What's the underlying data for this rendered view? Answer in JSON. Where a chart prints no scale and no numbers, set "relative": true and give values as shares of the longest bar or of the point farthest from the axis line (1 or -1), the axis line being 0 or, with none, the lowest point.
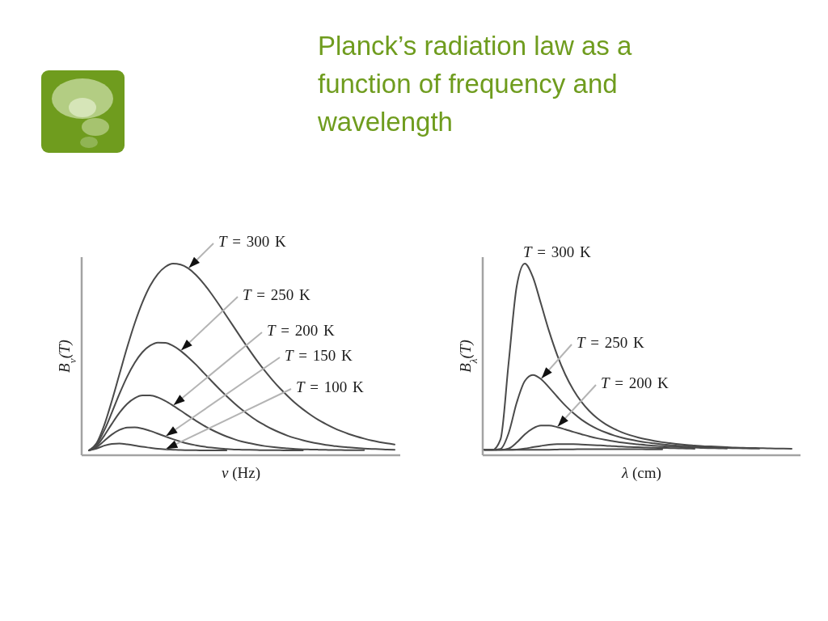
{
  "chart_data": [
    {
      "type": "line",
      "title": "Planck’s radiation law as a function of frequency and wavelength",
      "xlabel": "ν (Hz)",
      "ylabel": "B$_{ν}$(T)",
      "relative": true,
      "categories": [
        null,
        null,
        null,
        null,
        null,
        null,
        null,
        null,
        null,
        null,
        null,
        null,
        null,
        null,
        null,
        null,
        null,
        null,
        null,
        null,
        null,
        null,
        null,
        null,
        null,
        null,
        null,
        null,
        null,
        null,
        null,
        null,
        null,
        null,
        null,
        null,
        null,
        null,
        null,
        null,
        null
      ],
      "series": [
        {
          "name": "T = 300 K",
          "color": "#4a4a4a",
          "values": [
            0.025,
            0.063,
            0.157,
            0.284,
            0.424,
            0.563,
            0.69,
            0.798,
            0.884,
            0.945,
            0.983,
            1,
            0.995,
            0.975,
            0.941,
            0.896,
            0.844,
            0.787,
            0.727,
            0.667,
            0.607,
            0.549,
            0.493,
            0.441,
            0.393,
            0.349,
            0.309,
            0.272,
            0.24,
            0.211,
            0.185,
            0.163,
            0.143,
            0.126,
            0.111,
            0.098,
            0.087,
            0.077,
            0.069,
            0.062,
            0.056
          ]
        },
        {
          "name": "T = 250 K",
          "color": "#4a4a4a",
          "values": [
            0.025,
            0.056,
            0.129,
            0.223,
            0.321,
            0.41,
            0.483,
            0.538,
            0.572,
            0.588,
            0.587,
            0.571,
            0.545,
            0.511,
            0.473,
            0.431,
            0.389,
            0.348,
            0.309,
            0.272,
            0.238,
            0.208,
            0.18,
            0.157,
            0.136,
            0.118,
            0.102,
            0.089,
            0.078,
            0.069,
            0.061,
            0.054,
            0.049,
            0.044,
            0.041,
            0.038,
            0.035,
            0.033,
            0.032,
            0.03,
            0.029
          ]
        },
        {
          "name": "T = 200 K",
          "color": "#4a4a4a",
          "values": [
            0.025,
            0.049,
            0.102,
            0.164,
            0.222,
            0.268,
            0.298,
            0.312,
            0.312,
            0.302,
            0.283,
            0.259,
            0.233,
            0.206,
            0.18,
            0.156,
            0.134,
            0.115,
            0.098,
            0.084,
            0.072,
            0.063,
            0.055,
            0.048,
            0.043,
            0.039,
            0.036,
            0.033,
            0.031,
            0.03,
            0.029,
            0.028,
            0.027,
            0.027,
            0.026,
            0.026,
            0.026,
            null,
            null,
            null,
            null
          ]
        },
        {
          "name": "T = 150 K",
          "color": "#4a4a4a",
          "values": [
            0.025,
            0.042,
            0.075,
            0.108,
            0.132,
            0.145,
            0.146,
            0.139,
            0.127,
            0.113,
            0.098,
            0.084,
            0.071,
            0.06,
            0.052,
            0.045,
            0.04,
            0.036,
            0.033,
            0.03,
            0.029,
            0.028,
            0.027,
            0.026,
            0.026,
            0.026,
            0.025,
            0.025,
            0.025,
            null,
            null,
            null,
            null,
            null,
            null,
            null,
            null,
            null,
            null,
            null,
            null
          ]
        },
        {
          "name": "T = 100 K",
          "color": "#4a4a4a",
          "values": [
            0.025,
            0.035,
            0.05,
            0.059,
            0.061,
            0.057,
            0.051,
            0.044,
            0.039,
            0.034,
            0.031,
            0.029,
            0.027,
            0.026,
            0.026,
            0.025,
            0.025,
            0.025,
            0.025,
            null,
            null,
            null,
            null,
            null,
            null,
            null,
            null,
            null,
            null,
            null,
            null,
            null,
            null,
            null,
            null,
            null,
            null,
            null,
            null,
            null,
            null
          ]
        }
      ]
    },
    {
      "type": "line",
      "xlabel": "λ (cm)",
      "ylabel": "B$_{λ}$(T)",
      "relative": true,
      "categories": [
        null,
        null,
        null,
        null,
        null,
        null,
        null,
        null,
        null,
        null,
        null,
        null,
        null,
        null,
        null,
        null,
        null,
        null,
        null,
        null,
        null,
        null,
        null,
        null,
        null,
        null,
        null,
        null,
        null,
        null,
        null,
        null,
        null,
        null,
        null,
        null,
        null,
        null,
        null
      ],
      "series": [
        {
          "name": "T = 300 K",
          "color": "#4a4a4a",
          "values": [
            0.028,
            0.028,
            0.083,
            0.481,
            0.881,
            1,
            0.93,
            0.791,
            0.648,
            0.524,
            0.422,
            0.342,
            0.279,
            0.23,
            0.192,
            0.162,
            0.139,
            0.12,
            0.105,
            0.093,
            0.083,
            0.075,
            0.068,
            0.063,
            0.058,
            0.054,
            0.051,
            0.048,
            0.046,
            0.044,
            0.042,
            0.04,
            0.039,
            0.038,
            0.037,
            0.036,
            0.035,
            0.035,
            0.034
          ]
        },
        {
          "name": "T = 250 K",
          "color": "#4a4a4a",
          "values": [
            0.028,
            0.028,
            0.033,
            0.115,
            0.274,
            0.387,
            0.419,
            0.398,
            0.354,
            0.306,
            0.26,
            0.22,
            0.186,
            0.159,
            0.137,
            0.119,
            0.104,
            0.092,
            0.082,
            0.074,
            0.067,
            0.062,
            0.057,
            0.053,
            0.05,
            0.047,
            0.045,
            0.043,
            0.041,
            0.04,
            0.038,
            0.037,
            0.036,
            0.035,
            0.035,
            null,
            null,
            null,
            null
          ]
        },
        {
          "name": "T = 200 K",
          "color": "#4a4a4a",
          "values": [
            0.028,
            0.028,
            0.028,
            0.035,
            0.066,
            0.109,
            0.14,
            0.155,
            0.155,
            0.147,
            0.135,
            0.122,
            0.11,
            0.098,
            0.088,
            0.08,
            0.073,
            0.066,
            0.061,
            0.057,
            0.053,
            0.05,
            0.047,
            0.045,
            0.043,
            0.041,
            0.04,
            0.038,
            0.037,
            0.036,
            0.035,
            null,
            null,
            null,
            null,
            null,
            null,
            null,
            null
          ]
        },
        {
          "color": "#4a4a4a",
          "values": [
            0.028,
            0.028,
            0.028,
            0.028,
            0.03,
            0.035,
            0.042,
            0.049,
            0.055,
            0.058,
            0.058,
            0.058,
            0.056,
            0.054,
            0.052,
            0.05,
            0.047,
            0.045,
            0.043,
            0.042,
            0.04,
            0.039,
            0.038,
            0.037,
            0.036,
            0.035,
            0.034,
            null,
            null,
            null,
            null,
            null,
            null,
            null,
            null,
            null,
            null,
            null,
            null
          ]
        },
        {
          "color": "#4a4a4a",
          "values": [
            0.028,
            0.028,
            0.028,
            0.028,
            0.028,
            0.028,
            0.028,
            0.029,
            0.029,
            0.03,
            0.031,
            0.031,
            0.032,
            0.032,
            0.032,
            0.032,
            0.032,
            0.032,
            0.032,
            0.032,
            0.031,
            0.031,
            0.031,
            null,
            null,
            null,
            null,
            null,
            null,
            null,
            null,
            null,
            null,
            null,
            null,
            null,
            null,
            null,
            null
          ]
        }
      ]
    }
  ]
}
